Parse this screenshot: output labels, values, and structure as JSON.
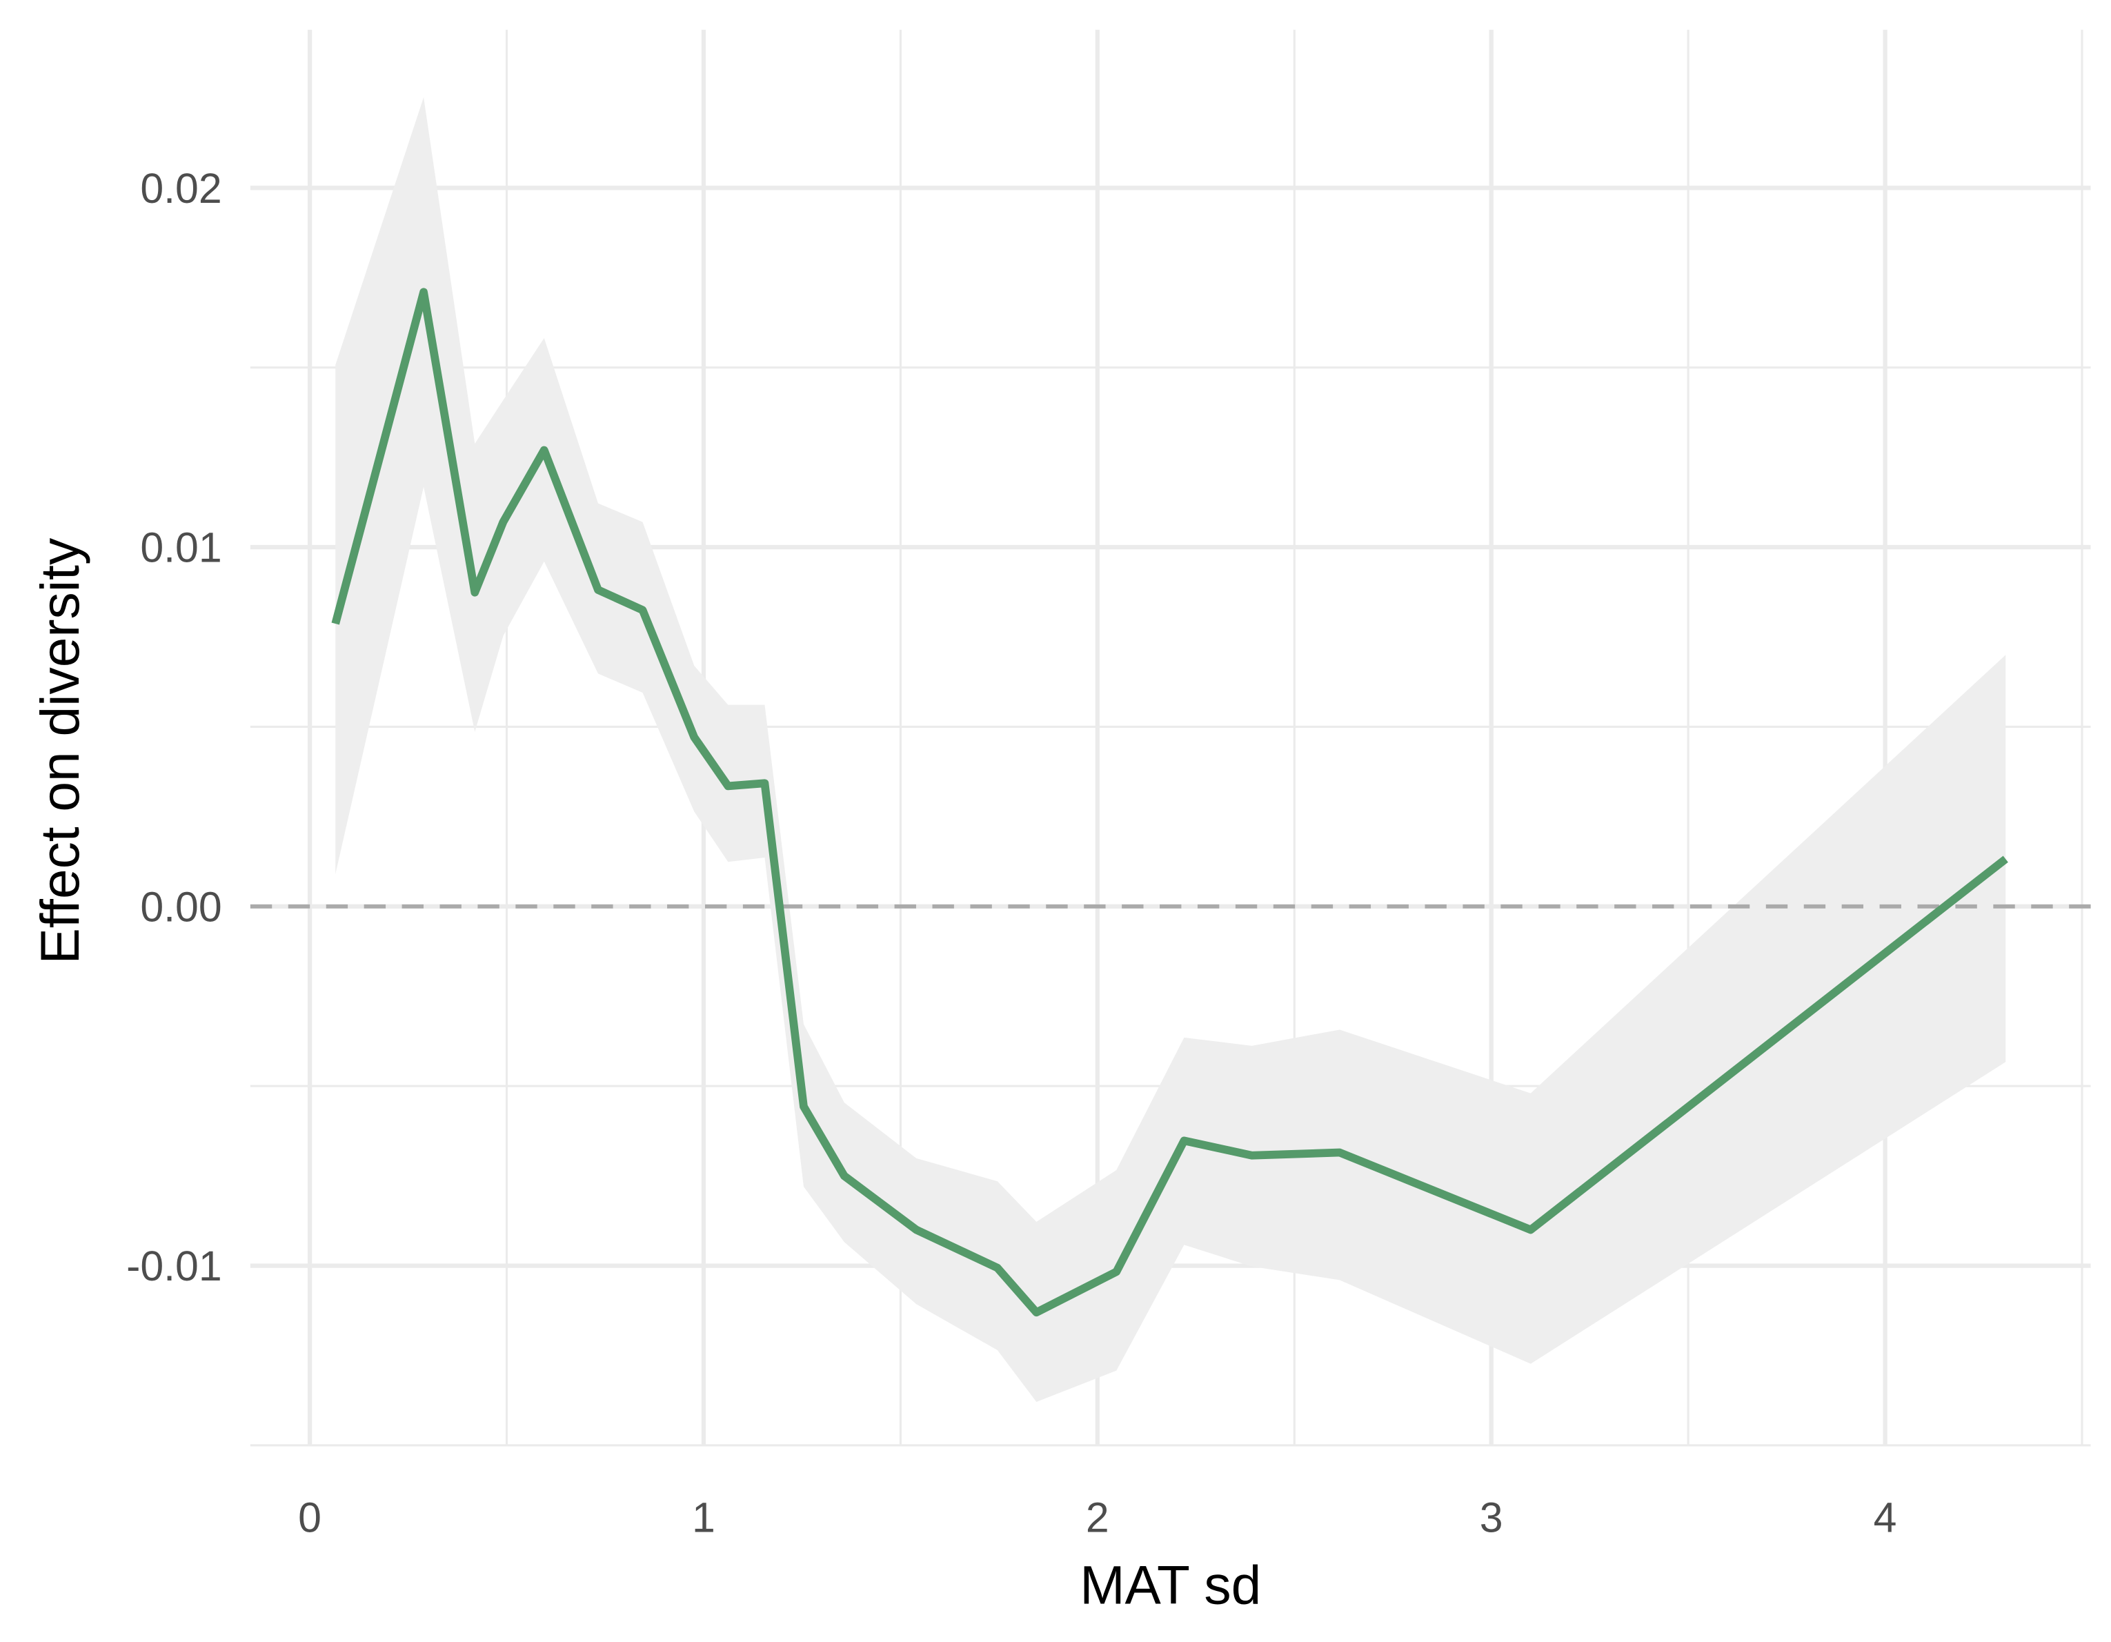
{
  "chart_data": {
    "type": "line",
    "x_label": "MAT sd",
    "y_label": "Effect on diversity",
    "x": [
      0.065,
      0.289,
      0.419,
      0.491,
      0.595,
      0.732,
      0.845,
      0.976,
      1.062,
      1.155,
      1.254,
      1.357,
      1.54,
      1.746,
      1.845,
      2.048,
      2.22,
      2.392,
      2.615,
      3.1,
      4.306
    ],
    "series": [
      {
        "color": "#559a6a",
        "band_color": "#eeeeee",
        "values": [
          0.00787,
          0.0171,
          0.00874,
          0.0107,
          0.0127,
          0.00881,
          0.00825,
          0.00471,
          0.00335,
          0.00343,
          -0.00557,
          -0.0075,
          -0.009,
          -0.01006,
          -0.0113,
          -0.01017,
          -0.00652,
          -0.00693,
          -0.00685,
          -0.009,
          0.00132
        ],
        "upper": [
          0.01507,
          0.02252,
          0.01288,
          0.01409,
          0.01582,
          0.01122,
          0.0107,
          0.0067,
          0.00561,
          0.00561,
          -0.00328,
          -0.00546,
          -0.00701,
          -0.00765,
          -0.00878,
          -0.00734,
          -0.00365,
          -0.00388,
          -0.00343,
          -0.0052,
          0.007
        ],
        "lower": [
          0.0009,
          0.01168,
          0.00486,
          0.00753,
          0.0096,
          0.00648,
          0.00595,
          0.00264,
          0.00124,
          0.00136,
          -0.0078,
          -0.00934,
          -0.01107,
          -0.01235,
          -0.01379,
          -0.01292,
          -0.00942,
          -0.01002,
          -0.0104,
          -0.01273,
          -0.00433
        ]
      }
    ],
    "xlim": [
      -0.151,
      4.522
    ],
    "ylim": [
      -0.015,
      0.0244
    ],
    "xticks": [
      0,
      1,
      2,
      3,
      4
    ],
    "yticks": [
      -0.01,
      {
        "value": 0,
        "label": "0.00"
      },
      0.01,
      0.02
    ],
    "x_minor_ticks": [
      0.5,
      1.5,
      2.5,
      3.5,
      4.5
    ],
    "y_minor_ticks": [
      -0.015,
      -0.005,
      0.005,
      0.015
    ],
    "hline": 0,
    "grid": true
  }
}
